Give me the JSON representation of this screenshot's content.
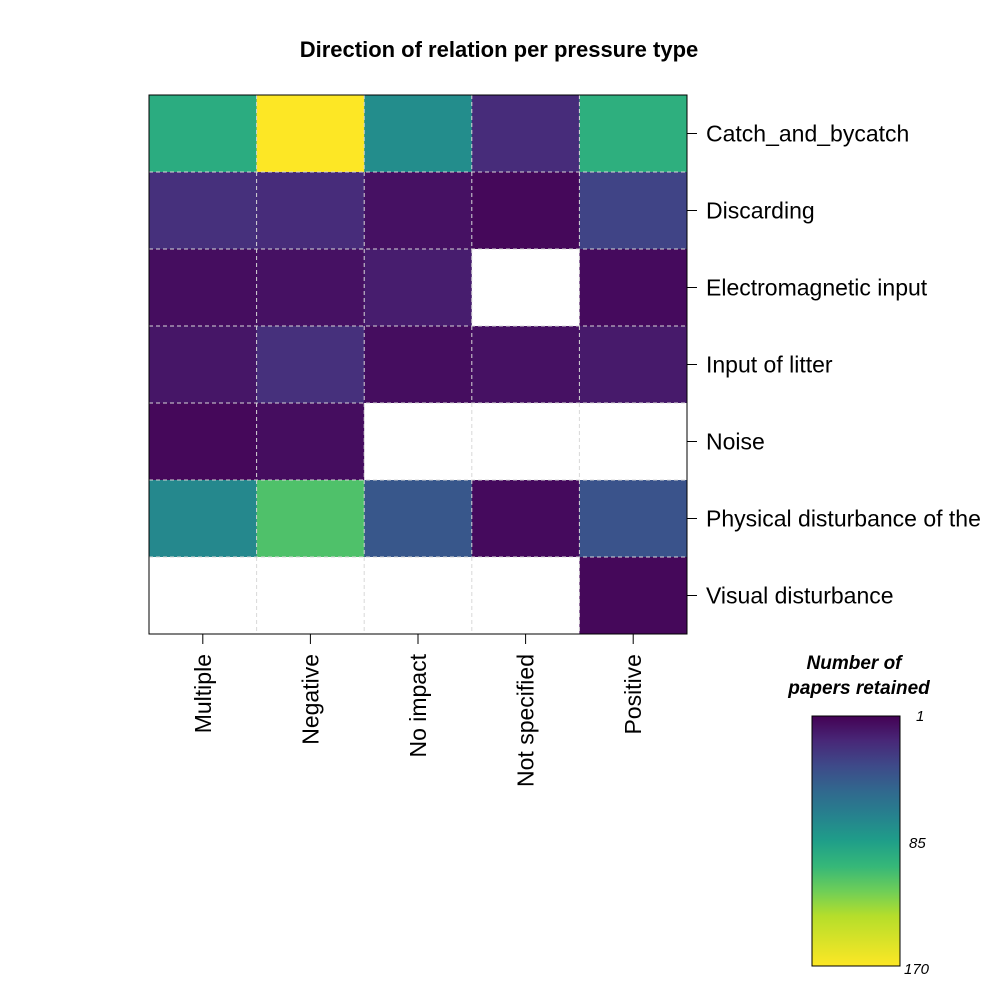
{
  "chart_data": {
    "type": "heatmap",
    "title": "Direction of relation per pressure type",
    "columns": [
      "Multiple",
      "Negative",
      "No impact",
      "Not specified",
      "Positive"
    ],
    "rows": [
      "Catch_and_bycatch",
      "Discarding",
      "Electromagnetic input",
      "Input of litter",
      "Noise",
      "Physical disturbance of the",
      "Visual disturbance"
    ],
    "values": [
      [
        95,
        170,
        75,
        20,
        97
      ],
      [
        22,
        20,
        8,
        4,
        32
      ],
      [
        6,
        8,
        13,
        null,
        5
      ],
      [
        10,
        22,
        6,
        8,
        12
      ],
      [
        4,
        6,
        null,
        null,
        null
      ],
      [
        72,
        110,
        42,
        5,
        40
      ],
      [
        null,
        null,
        null,
        null,
        4
      ]
    ],
    "colorbar": {
      "title_line1": "Number of",
      "title_line2": "papers retained",
      "min": 1,
      "mid": 85,
      "max": 170,
      "tick_labels": [
        "1",
        "85",
        "170"
      ],
      "colormap": "viridis-reversed"
    },
    "missing_color": "#ffffff",
    "grid": "dashed"
  }
}
